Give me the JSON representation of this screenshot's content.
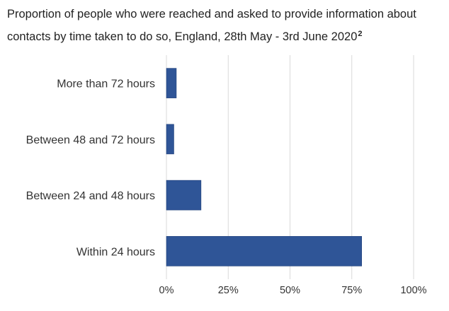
{
  "title_main": "Proportion of people who were reached and asked to provide information about contacts by time taken to do so, England, 28th May - 3rd June 2020",
  "title_footnote": "2",
  "colors": {
    "bar": "#2f5597",
    "bar_edge": "#1f3f78",
    "grid": "#d9d9d9"
  },
  "chart_data": {
    "type": "bar",
    "orientation": "horizontal",
    "categories": [
      "More than 72 hours",
      "Between 48 and 72 hours",
      "Between 24 and 48 hours",
      "Within 24 hours"
    ],
    "values": [
      4,
      3,
      14,
      79
    ],
    "xlim": [
      0,
      100
    ],
    "xticks": [
      0,
      25,
      50,
      75,
      100
    ],
    "xtick_labels": [
      "0%",
      "25%",
      "50%",
      "75%",
      "100%"
    ],
    "grid": "vertical"
  }
}
